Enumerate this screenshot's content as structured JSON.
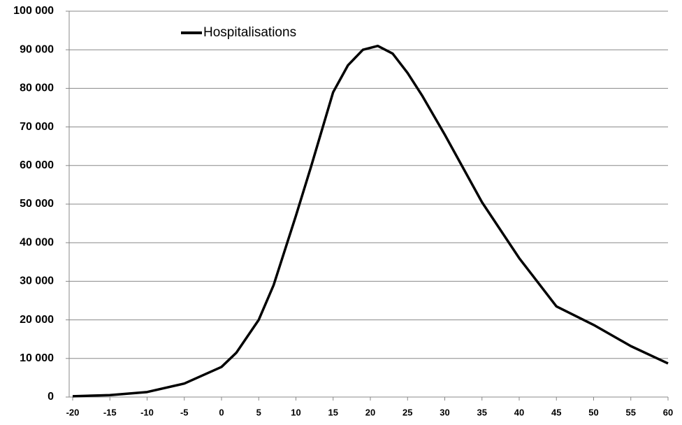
{
  "chart_data": {
    "type": "line",
    "x": [
      -20,
      -15,
      -10,
      -5,
      0,
      2,
      5,
      7,
      10,
      12,
      15,
      17,
      19,
      21,
      23,
      25,
      27,
      30,
      32,
      35,
      40,
      45,
      50,
      55,
      60
    ],
    "series": [
      {
        "name": "Hospitalisations",
        "color": "#000000",
        "values": [
          200,
          500,
          1300,
          3500,
          7800,
          11500,
          20000,
          29000,
          47000,
          59500,
          79000,
          86000,
          90000,
          91000,
          89000,
          84000,
          78000,
          68000,
          61000,
          50500,
          36000,
          23500,
          18700,
          13200,
          8700
        ]
      }
    ],
    "xlim": [
      -20,
      60
    ],
    "xticks": [
      -20,
      -15,
      -10,
      -5,
      0,
      5,
      10,
      15,
      20,
      25,
      30,
      35,
      40,
      45,
      50,
      55,
      60
    ],
    "ylim": [
      0,
      100000
    ],
    "yticks": [
      0,
      {
        "value": 10000,
        "label": "10 000"
      },
      {
        "value": 20000,
        "label": "20 000"
      },
      {
        "value": 30000,
        "label": "30 000"
      },
      {
        "value": 40000,
        "label": "40 000"
      },
      {
        "value": 50000,
        "label": "50 000"
      },
      {
        "value": 60000,
        "label": "60 000"
      },
      {
        "value": 70000,
        "label": "70 000"
      },
      {
        "value": 80000,
        "label": "80 000"
      },
      {
        "value": 90000,
        "label": "90 000"
      },
      {
        "value": 100000,
        "label": "100 000"
      }
    ],
    "grid": true,
    "legend": "top-left"
  }
}
